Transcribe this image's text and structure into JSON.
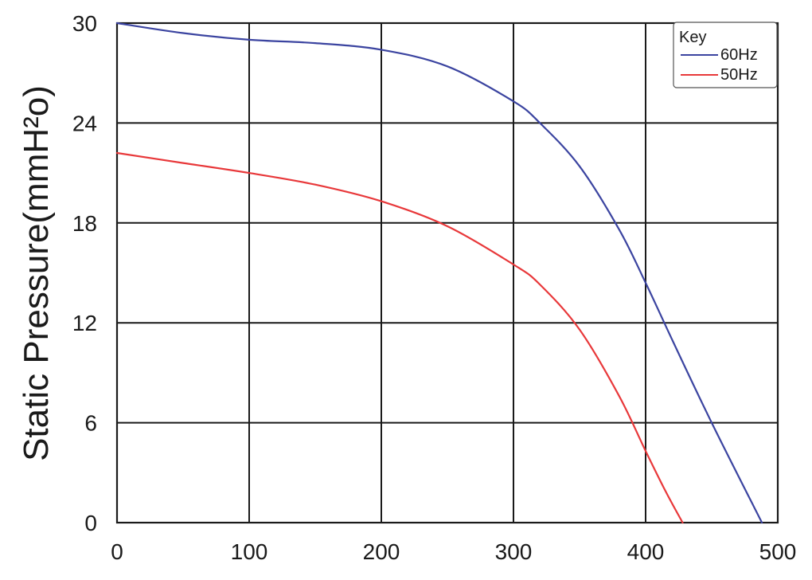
{
  "chart_data": {
    "type": "line",
    "title": "",
    "xlabel": "",
    "ylabel": "Static Pressure(mmH²o)",
    "xlim": [
      0,
      500
    ],
    "ylim": [
      0,
      30
    ],
    "xticks": [
      "0",
      "100",
      "200",
      "300",
      "400",
      "500"
    ],
    "yticks": [
      "0",
      "6",
      "12",
      "18",
      "24",
      "30"
    ],
    "grid": true,
    "legend": {
      "title": "Key",
      "placement": "top-right"
    },
    "series": [
      {
        "name": "60Hz",
        "color": "#3b44a0",
        "x": [
          0,
          50,
          100,
          150,
          200,
          250,
          300,
          320,
          350,
          380,
          400,
          420,
          450,
          488
        ],
        "y": [
          30,
          29.4,
          29.0,
          28.8,
          28.4,
          27.4,
          25.3,
          24.0,
          21.4,
          17.6,
          14.4,
          11.0,
          6.0,
          0
        ]
      },
      {
        "name": "50Hz",
        "color": "#e8383a",
        "x": [
          0,
          50,
          100,
          150,
          200,
          250,
          300,
          320,
          350,
          380,
          400,
          415,
          428
        ],
        "y": [
          22.2,
          21.6,
          21.0,
          20.3,
          19.3,
          17.8,
          15.5,
          14.3,
          11.6,
          7.6,
          4.3,
          1.9,
          0
        ]
      }
    ]
  }
}
